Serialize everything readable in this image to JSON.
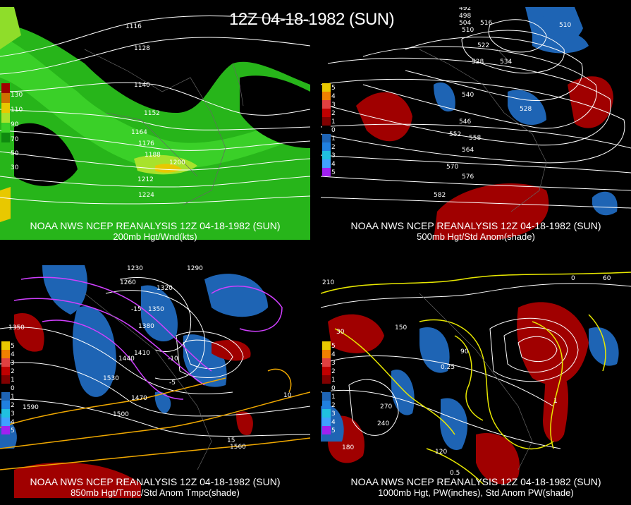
{
  "main_title": "12Z 04-18-1982 (SUN)",
  "panels": [
    {
      "caption": "NOAA NWS NCEP REANALYSIS 12Z 04-18-1982 (SUN)",
      "subcaption": "200mb Hgt/Wnd(kts)",
      "colorbar": [
        "130",
        "110",
        "90",
        "70",
        "50",
        "30"
      ],
      "contour_labels": [
        "1116",
        "1128",
        "1140",
        "1152",
        "1164",
        "1176",
        "1188",
        "1200",
        "1212",
        "1224"
      ]
    },
    {
      "caption": "NOAA NWS NCEP REANALYSIS 12Z 04-18-1982 (SUN)",
      "subcaption": "500mb Hgt/Std Anom(shade)",
      "colorbar": [
        "5",
        "4",
        "3",
        "2",
        "1",
        "0",
        "1",
        "2",
        "3",
        "4",
        "5"
      ],
      "contour_labels": [
        "492",
        "498",
        "504",
        "510",
        "516",
        "522",
        "528",
        "534",
        "540",
        "546",
        "552",
        "558",
        "564",
        "570",
        "576",
        "582",
        "510",
        "528"
      ]
    },
    {
      "caption": "NOAA NWS NCEP REANALYSIS 12Z 04-18-1982 (SUN)",
      "subcaption": "850mb Hgt/Tmpc/Std Anom Tmpc(shade)",
      "colorbar": [
        "5",
        "4",
        "3",
        "2",
        "1",
        "0",
        "1",
        "2",
        "3",
        "4",
        "5"
      ],
      "contour_labels": [
        "1230",
        "1260",
        "1290",
        "1320",
        "1350",
        "1380",
        "1410",
        "1440",
        "1470",
        "1500",
        "1530",
        "1560",
        "1590",
        "1350",
        "-15",
        "-10",
        "-5",
        "10",
        "15"
      ]
    },
    {
      "caption": "NOAA NWS NCEP REANALYSIS 12Z 04-18-1982 (SUN)",
      "subcaption": "1000mb Hgt, PW(inches), Std Anom PW(shade)",
      "colorbar": [
        "5",
        "4",
        "3",
        "2",
        "1",
        "0",
        "1",
        "2",
        "3",
        "4",
        "5"
      ],
      "contour_labels": [
        "210",
        "180",
        "150",
        "120",
        "90",
        "60",
        "30",
        "0",
        "240",
        "270",
        "0.25",
        "0.5",
        "1"
      ]
    }
  ],
  "colors": {
    "jet_dark": "#0f8a0f",
    "jet_mid": "#26c21c",
    "jet_light": "#8fdd2a",
    "jet_max": "#e8c800",
    "anom_pos": "#a00000",
    "anom_neg": "#1e64b4",
    "pw_contour": "#e8e800",
    "temp_cold": "#d040ff",
    "temp_warm": "#f0a800"
  }
}
